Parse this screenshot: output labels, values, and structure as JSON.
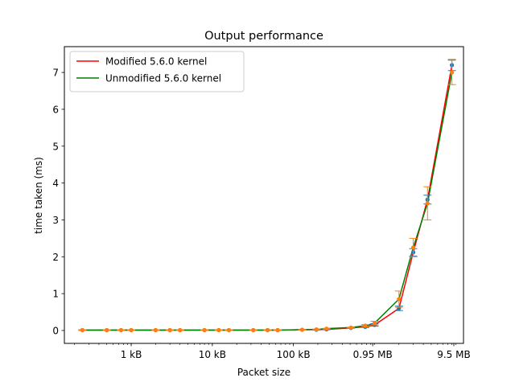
{
  "chart_data": {
    "type": "line",
    "title": "Output performance",
    "xlabel": "Packet size",
    "ylabel": "time taken (ms)",
    "xscale": "log",
    "x_unit": "bytes",
    "x_ticks": [
      {
        "value": 1000,
        "label": "1 kB"
      },
      {
        "value": 10000,
        "label": "10 kB"
      },
      {
        "value": 100000,
        "label": "100 kB"
      },
      {
        "value": 950000,
        "label": "0.95 MB"
      },
      {
        "value": 9500000,
        "label": "9.5 MB"
      }
    ],
    "y_ticks": [
      0,
      1,
      2,
      3,
      4,
      5,
      6,
      7
    ],
    "xlim": [
      150,
      12500000
    ],
    "ylim": [
      -0.35,
      7.7
    ],
    "legend_position": "top-left",
    "x": [
      250,
      500,
      750,
      1000,
      2000,
      3000,
      4000,
      8000,
      12000,
      16000,
      32000,
      48000,
      64000,
      128000,
      192000,
      256000,
      512000,
      768000,
      1000000,
      2000000,
      3000000,
      4500000,
      9000000
    ],
    "series": [
      {
        "name": "Modified 5.6.0 kernel",
        "color": "#ff0000",
        "marker_color": "#1f77b4",
        "values": [
          0.01,
          0.01,
          0.01,
          0.01,
          0.01,
          0.01,
          0.01,
          0.01,
          0.01,
          0.01,
          0.01,
          0.01,
          0.01,
          0.02,
          0.02,
          0.03,
          0.07,
          0.1,
          0.15,
          0.6,
          2.12,
          3.55,
          7.2
        ],
        "error": [
          0.01,
          0.01,
          0.01,
          0.01,
          0.01,
          0.01,
          0.01,
          0.01,
          0.01,
          0.01,
          0.01,
          0.01,
          0.01,
          0.01,
          0.01,
          0.01,
          0.01,
          0.02,
          0.03,
          0.06,
          0.1,
          0.12,
          0.15
        ]
      },
      {
        "name": "Unmodified 5.6.0 kernel",
        "color": "#008000",
        "marker_color": "#ff7f0e",
        "values": [
          0.01,
          0.01,
          0.01,
          0.01,
          0.01,
          0.01,
          0.01,
          0.01,
          0.01,
          0.01,
          0.01,
          0.01,
          0.01,
          0.02,
          0.03,
          0.05,
          0.08,
          0.13,
          0.2,
          0.85,
          2.25,
          3.45,
          7.0
        ],
        "error": [
          0.01,
          0.01,
          0.01,
          0.01,
          0.01,
          0.01,
          0.01,
          0.01,
          0.01,
          0.01,
          0.01,
          0.01,
          0.01,
          0.01,
          0.01,
          0.01,
          0.01,
          0.03,
          0.05,
          0.22,
          0.25,
          0.45,
          0.33
        ]
      }
    ]
  }
}
